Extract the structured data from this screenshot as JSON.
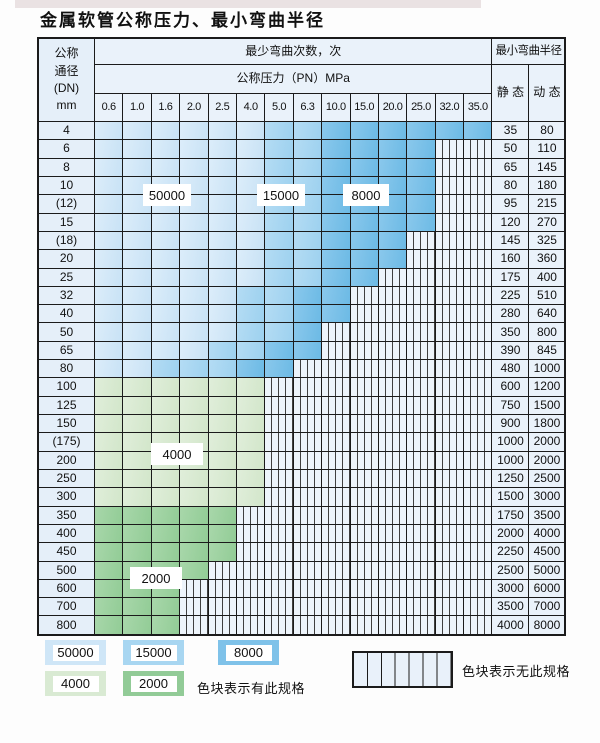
{
  "title": "金属软管公称压力、最小弯曲半径",
  "header": {
    "dn_label": "公称\n通径\n(DN)\nmm",
    "bend_times_label": "最少弯曲次数，次",
    "pressure_label": "公称压力（PN）MPa",
    "pressure_values": [
      "0.6",
      "1.0",
      "1.6",
      "2.0",
      "2.5",
      "4.0",
      "5.0",
      "6.3",
      "10.0",
      "15.0",
      "20.0",
      "25.0",
      "32.0",
      "35.0"
    ],
    "radius_label": "最小弯曲半径",
    "static_label": "静 态",
    "dynamic_label": "动 态"
  },
  "cell_codes": {
    "l": "50000",
    "m": "15000",
    "d": "8000",
    "f": "4000",
    "t": "2000",
    "x": "none"
  },
  "band_colors": {
    "50000": "#cfe6f7",
    "15000": "#a8d6f1",
    "8000": "#7fc2e9",
    "4000": "#d9ead3",
    "2000": "#92cb97"
  },
  "rows": [
    {
      "dn": "4",
      "cells": "llllllmmdddddd",
      "static": "35",
      "dynamic": "80"
    },
    {
      "dn": "6",
      "cells": "llllllmmddddxx",
      "static": "50",
      "dynamic": "110"
    },
    {
      "dn": "8",
      "cells": "llllllmmddddxx",
      "static": "65",
      "dynamic": "145"
    },
    {
      "dn": "10",
      "cells": "llllllmmddddxx",
      "static": "80",
      "dynamic": "180"
    },
    {
      "dn": "(12)",
      "cells": "llllllmmddddxx",
      "static": "95",
      "dynamic": "215"
    },
    {
      "dn": "15",
      "cells": "llllllmmddddxx",
      "static": "120",
      "dynamic": "270"
    },
    {
      "dn": "(18)",
      "cells": "llllllmmdddxxx",
      "static": "145",
      "dynamic": "325"
    },
    {
      "dn": "20",
      "cells": "llllllmmdddxxx",
      "static": "160",
      "dynamic": "360"
    },
    {
      "dn": "25",
      "cells": "llllllmmddxxxx",
      "static": "175",
      "dynamic": "400"
    },
    {
      "dn": "32",
      "cells": "lllllmmddxxxxx",
      "static": "225",
      "dynamic": "510"
    },
    {
      "dn": "40",
      "cells": "lllllmmddxxxxx",
      "static": "280",
      "dynamic": "640"
    },
    {
      "dn": "50",
      "cells": "lllllmmdxxxxxx",
      "static": "350",
      "dynamic": "800"
    },
    {
      "dn": "65",
      "cells": "llllmmddxxxxxx",
      "static": "390",
      "dynamic": "845"
    },
    {
      "dn": "80",
      "cells": "llmmmddxxxxxxx",
      "static": "480",
      "dynamic": "1000"
    },
    {
      "dn": "100",
      "cells": "ffffffxxxxxxxx",
      "static": "600",
      "dynamic": "1200"
    },
    {
      "dn": "125",
      "cells": "ffffffxxxxxxxx",
      "static": "750",
      "dynamic": "1500"
    },
    {
      "dn": "150",
      "cells": "ffffffxxxxxxxx",
      "static": "900",
      "dynamic": "1800"
    },
    {
      "dn": "(175)",
      "cells": "ffffffxxxxxxxx",
      "static": "1000",
      "dynamic": "2000"
    },
    {
      "dn": "200",
      "cells": "ffffffxxxxxxxx",
      "static": "1000",
      "dynamic": "2000"
    },
    {
      "dn": "250",
      "cells": "ffffffxxxxxxxx",
      "static": "1250",
      "dynamic": "2500"
    },
    {
      "dn": "300",
      "cells": "ffffffxxxxxxxx",
      "static": "1500",
      "dynamic": "3000"
    },
    {
      "dn": "350",
      "cells": "tttttxxxxxxxxx",
      "static": "1750",
      "dynamic": "3500"
    },
    {
      "dn": "400",
      "cells": "tttttxxxxxxxxx",
      "static": "2000",
      "dynamic": "4000"
    },
    {
      "dn": "450",
      "cells": "tttttxxxxxxxxx",
      "static": "2250",
      "dynamic": "4500"
    },
    {
      "dn": "500",
      "cells": "ttttxxxxxxxxxx",
      "static": "2500",
      "dynamic": "5000"
    },
    {
      "dn": "600",
      "cells": "tttxxxxxxxxxxx",
      "static": "3000",
      "dynamic": "6000"
    },
    {
      "dn": "700",
      "cells": "tttxxxxxxxxxxx",
      "static": "3500",
      "dynamic": "7000"
    },
    {
      "dn": "800",
      "cells": "tttxxxxxxxxxxx",
      "static": "4000",
      "dynamic": "8000"
    }
  ],
  "overlay_labels": [
    {
      "text": "50000"
    },
    {
      "text": "15000"
    },
    {
      "text": "8000"
    },
    {
      "text": "4000"
    },
    {
      "text": "2000"
    }
  ],
  "legend": {
    "swatches": [
      {
        "label": "50000"
      },
      {
        "label": "15000"
      },
      {
        "label": "8000"
      },
      {
        "label": "4000"
      },
      {
        "label": "2000"
      }
    ],
    "has_spec_text": "色块表示有此规格",
    "no_spec_text": "色块表示无此规格"
  }
}
